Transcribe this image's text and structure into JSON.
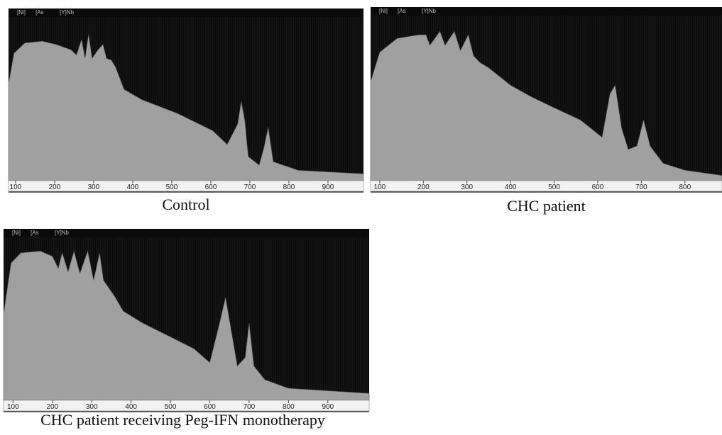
{
  "chart_data": [
    {
      "type": "area",
      "title": "Control",
      "color": "#a0a0a0",
      "top_labels": [
        "[Ni]",
        "[As",
        "[Y]Nb"
      ],
      "x": [
        82,
        96,
        124,
        169,
        205,
        242,
        256,
        269,
        278,
        287,
        296,
        311,
        324,
        333,
        345,
        356,
        378,
        424,
        515,
        605,
        642,
        669,
        678,
        687,
        696,
        724,
        736,
        747,
        760,
        824,
        991
      ],
      "values": [
        56,
        74,
        80,
        81,
        79,
        76,
        73,
        82,
        71,
        85,
        71,
        76,
        79,
        71,
        70,
        66,
        53,
        47,
        39,
        29,
        21,
        33,
        46,
        35,
        14,
        9,
        19,
        31,
        11,
        6,
        4
      ],
      "xlim": [
        82,
        991
      ],
      "ylim": [
        0,
        100
      ],
      "xticks": [
        100,
        200,
        300,
        400,
        500,
        600,
        700,
        800,
        900
      ]
    },
    {
      "type": "area",
      "title": "CHC patient",
      "color": "#a0a0a0",
      "top_labels": [
        "[Ni]",
        "[As",
        "[Y]Nb"
      ],
      "x": [
        79,
        100,
        140,
        190,
        206,
        215,
        238,
        250,
        271,
        285,
        303,
        315,
        330,
        350,
        400,
        450,
        500,
        560,
        610,
        628,
        640,
        655,
        670,
        690,
        705,
        720,
        750,
        800,
        885
      ],
      "values": [
        57,
        74,
        82,
        84,
        84,
        78,
        86,
        78,
        86,
        75,
        84,
        72,
        68,
        65,
        55,
        48,
        42,
        35,
        25,
        50,
        55,
        30,
        18,
        20,
        35,
        20,
        10,
        6,
        3
      ],
      "xlim": [
        79,
        885
      ],
      "ylim": [
        0,
        100
      ],
      "xticks": [
        100,
        200,
        300,
        400,
        500,
        600,
        700,
        800
      ]
    },
    {
      "type": "area",
      "title": "CHC patient receiving Peg-IFN monotherapy",
      "color": "#a0a0a0",
      "top_labels": [
        "[Ni]",
        "[As",
        "[Y]Nb"
      ],
      "x": [
        76,
        95,
        120,
        170,
        200,
        215,
        225,
        240,
        255,
        270,
        290,
        305,
        320,
        330,
        345,
        360,
        380,
        430,
        500,
        560,
        600,
        625,
        640,
        655,
        670,
        690,
        700,
        712,
        740,
        800,
        1005
      ],
      "values": [
        50,
        80,
        86,
        87,
        84,
        77,
        86,
        75,
        87,
        74,
        87,
        70,
        86,
        70,
        65,
        60,
        52,
        45,
        37,
        30,
        22,
        45,
        60,
        40,
        20,
        25,
        45,
        20,
        12,
        7,
        4
      ],
      "xlim": [
        76,
        1005
      ],
      "ylim": [
        0,
        100
      ],
      "xticks": [
        100,
        200,
        300,
        400,
        500,
        600,
        700,
        800,
        900
      ]
    }
  ]
}
